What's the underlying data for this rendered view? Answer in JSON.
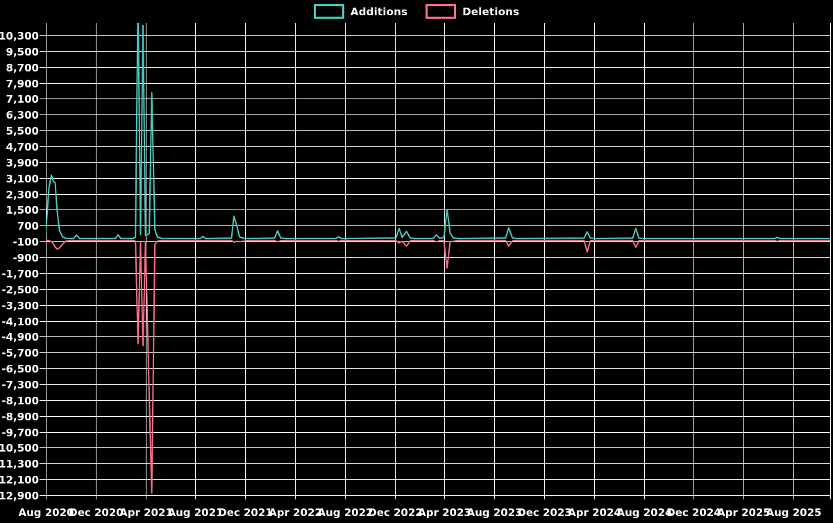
{
  "colors": {
    "background": "#000000",
    "grid": "#ffffff",
    "text": "#ffffff",
    "additions": "#4fc8bf",
    "deletions": "#f8708a"
  },
  "legend": {
    "items": [
      {
        "id": "additions",
        "label": "Additions",
        "color": "#4fc8bf"
      },
      {
        "id": "deletions",
        "label": "Deletions",
        "color": "#f8708a"
      }
    ]
  },
  "chart_data": {
    "type": "line",
    "title": "",
    "xlabel": "",
    "ylabel": "",
    "grid": true,
    "legend_position": "top-center",
    "x_axis": {
      "unit": "months since Aug 2020",
      "tick_step_months": 4,
      "range_months": [
        0,
        62.9
      ],
      "tick_labels": [
        "Aug 2020",
        "Dec 2020",
        "Apr 2021",
        "Aug 2021",
        "Dec 2021",
        "Apr 2022",
        "Aug 2022",
        "Dec 2022",
        "Apr 2023",
        "Aug 2023",
        "Dec 2023",
        "Apr 2024",
        "Aug 2024",
        "Dec 2024",
        "Apr 2025",
        "Aug 2025"
      ]
    },
    "y_axis": {
      "max": 10300,
      "min": -12900,
      "step": 800,
      "tick_labels": [
        "10,300",
        "9,500",
        "8,700",
        "7,900",
        "7,100",
        "6,300",
        "5,500",
        "4,700",
        "3,900",
        "3,100",
        "2,300",
        "1,500",
        "700",
        "-100",
        "-900",
        "-1,700",
        "-2,500",
        "-3,300",
        "-4,100",
        "-4,900",
        "-5,700",
        "-6,500",
        "-7,300",
        "-8,100",
        "-8,900",
        "-9,700",
        "-10,500",
        "-11,300",
        "-12,100",
        "-12,900"
      ]
    },
    "series": [
      {
        "name": "Additions",
        "color": "#4fc8bf",
        "points": [
          [
            0,
            400
          ],
          [
            0.25,
            2600
          ],
          [
            0.45,
            3250
          ],
          [
            0.6,
            2950
          ],
          [
            0.75,
            2850
          ],
          [
            0.9,
            1500
          ],
          [
            1.1,
            450
          ],
          [
            1.35,
            130
          ],
          [
            1.6,
            60
          ],
          [
            2.0,
            50
          ],
          [
            2.25,
            60
          ],
          [
            2.45,
            230
          ],
          [
            2.7,
            60
          ],
          [
            3.5,
            50
          ],
          [
            5.6,
            60
          ],
          [
            5.8,
            240
          ],
          [
            6.0,
            60
          ],
          [
            7.0,
            50
          ],
          [
            7.2,
            120
          ],
          [
            7.4,
            12400
          ],
          [
            7.6,
            250
          ],
          [
            7.8,
            10800
          ],
          [
            8.0,
            200
          ],
          [
            8.3,
            300
          ],
          [
            8.5,
            7400
          ],
          [
            8.75,
            500
          ],
          [
            8.95,
            120
          ],
          [
            9.3,
            60
          ],
          [
            12.4,
            50
          ],
          [
            12.6,
            160
          ],
          [
            12.8,
            50
          ],
          [
            14.9,
            70
          ],
          [
            15.1,
            1180
          ],
          [
            15.3,
            760
          ],
          [
            15.55,
            130
          ],
          [
            15.9,
            60
          ],
          [
            16.3,
            50
          ],
          [
            18.35,
            70
          ],
          [
            18.6,
            440
          ],
          [
            18.85,
            70
          ],
          [
            19.3,
            50
          ],
          [
            23.3,
            60
          ],
          [
            23.5,
            140
          ],
          [
            23.7,
            50
          ],
          [
            28.1,
            80
          ],
          [
            28.35,
            560
          ],
          [
            28.6,
            110
          ],
          [
            28.95,
            410
          ],
          [
            29.25,
            80
          ],
          [
            29.6,
            50
          ],
          [
            31.1,
            60
          ],
          [
            31.35,
            240
          ],
          [
            31.6,
            60
          ],
          [
            31.95,
            100
          ],
          [
            32.2,
            1520
          ],
          [
            32.45,
            320
          ],
          [
            32.7,
            80
          ],
          [
            33.1,
            50
          ],
          [
            36.9,
            80
          ],
          [
            37.15,
            590
          ],
          [
            37.45,
            80
          ],
          [
            37.8,
            50
          ],
          [
            43.2,
            70
          ],
          [
            43.45,
            390
          ],
          [
            43.7,
            70
          ],
          [
            44.1,
            50
          ],
          [
            47.1,
            70
          ],
          [
            47.35,
            550
          ],
          [
            47.6,
            70
          ],
          [
            48.0,
            50
          ],
          [
            58.5,
            50
          ],
          [
            58.7,
            110
          ],
          [
            58.9,
            50
          ],
          [
            62.9,
            50
          ]
        ]
      },
      {
        "name": "Deletions",
        "color": "#f8708a",
        "points": [
          [
            0,
            -30
          ],
          [
            0.25,
            -60
          ],
          [
            0.45,
            -100
          ],
          [
            0.6,
            -200
          ],
          [
            0.75,
            -380
          ],
          [
            0.9,
            -480
          ],
          [
            1.1,
            -420
          ],
          [
            1.35,
            -230
          ],
          [
            1.6,
            -80
          ],
          [
            2.0,
            -50
          ],
          [
            2.25,
            -50
          ],
          [
            2.45,
            -60
          ],
          [
            2.7,
            -50
          ],
          [
            3.5,
            -50
          ],
          [
            5.6,
            -50
          ],
          [
            5.8,
            -70
          ],
          [
            6.0,
            -50
          ],
          [
            7.0,
            -50
          ],
          [
            7.2,
            -80
          ],
          [
            7.4,
            -5250
          ],
          [
            7.6,
            -150
          ],
          [
            7.8,
            -5350
          ],
          [
            8.0,
            -120
          ],
          [
            8.3,
            -7950
          ],
          [
            8.5,
            -12780
          ],
          [
            8.75,
            -250
          ],
          [
            8.95,
            -80
          ],
          [
            9.3,
            -50
          ],
          [
            12.4,
            -50
          ],
          [
            12.6,
            -60
          ],
          [
            12.8,
            -50
          ],
          [
            14.9,
            -50
          ],
          [
            15.1,
            -130
          ],
          [
            15.3,
            -90
          ],
          [
            15.55,
            -100
          ],
          [
            15.9,
            -80
          ],
          [
            16.3,
            -50
          ],
          [
            18.35,
            -50
          ],
          [
            18.6,
            -110
          ],
          [
            18.85,
            -60
          ],
          [
            19.3,
            -50
          ],
          [
            23.3,
            -50
          ],
          [
            23.5,
            -90
          ],
          [
            23.7,
            -50
          ],
          [
            28.1,
            -60
          ],
          [
            28.35,
            -170
          ],
          [
            28.6,
            -90
          ],
          [
            28.95,
            -330
          ],
          [
            29.25,
            -70
          ],
          [
            29.6,
            -50
          ],
          [
            31.1,
            -50
          ],
          [
            31.35,
            -110
          ],
          [
            31.6,
            -60
          ],
          [
            31.95,
            -60
          ],
          [
            32.2,
            -1430
          ],
          [
            32.45,
            -110
          ],
          [
            32.7,
            -90
          ],
          [
            33.1,
            -50
          ],
          [
            36.9,
            -50
          ],
          [
            37.15,
            -330
          ],
          [
            37.45,
            -70
          ],
          [
            37.8,
            -50
          ],
          [
            43.2,
            -50
          ],
          [
            43.45,
            -630
          ],
          [
            43.7,
            -60
          ],
          [
            44.1,
            -50
          ],
          [
            47.1,
            -50
          ],
          [
            47.35,
            -390
          ],
          [
            47.6,
            -60
          ],
          [
            48.0,
            -50
          ],
          [
            58.5,
            -50
          ],
          [
            58.7,
            -90
          ],
          [
            58.9,
            -50
          ],
          [
            62.9,
            -50
          ]
        ]
      }
    ]
  }
}
